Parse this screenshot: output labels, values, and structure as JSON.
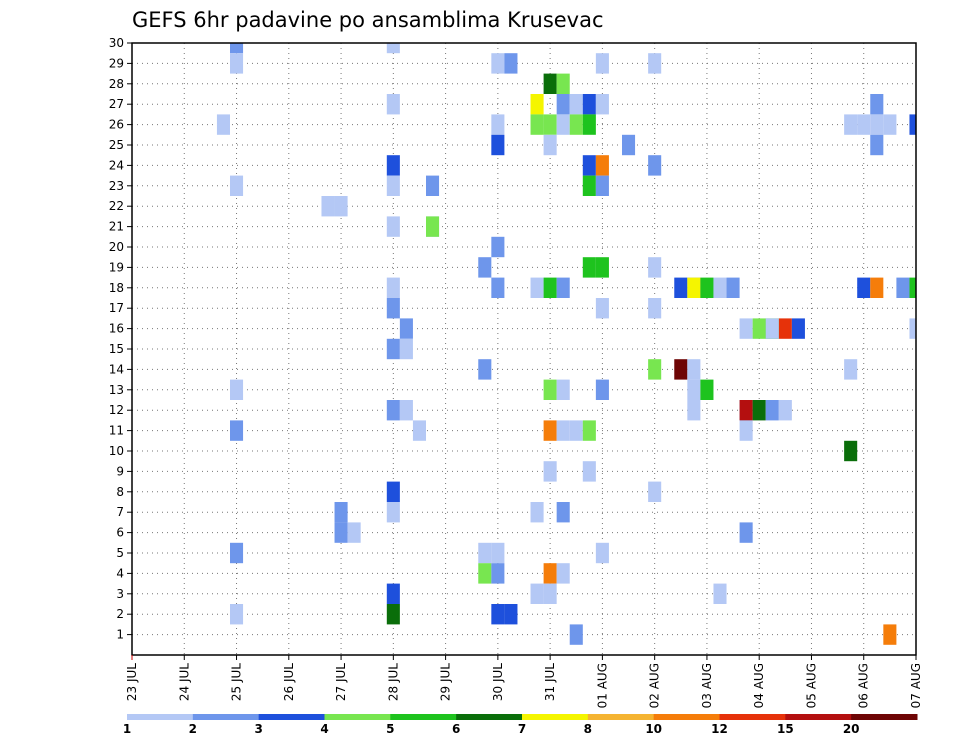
{
  "chart_data": {
    "type": "heatmap",
    "title": "GEFS 6hr padavine po ansamblima Krusevac",
    "x_labels": [
      "23 JUL",
      "24 JUL",
      "25 JUL",
      "26 JUL",
      "27 JUL",
      "28 JUL",
      "29 JUL",
      "30 JUL",
      "31 JUL",
      "01 AUG",
      "02 AUG",
      "03 AUG",
      "04 AUG",
      "05 AUG",
      "06 AUG",
      "07 AUG"
    ],
    "y_labels": [
      "1",
      "2",
      "3",
      "4",
      "5",
      "6",
      "7",
      "8",
      "9",
      "10",
      "11",
      "12",
      "13",
      "14",
      "15",
      "16",
      "17",
      "18",
      "19",
      "20",
      "21",
      "22",
      "23",
      "24",
      "25",
      "26",
      "27",
      "28",
      "29",
      "30"
    ],
    "ylim": [
      0,
      30
    ],
    "colorbar": {
      "levels": [
        "1",
        "2",
        "3",
        "4",
        "5",
        "6",
        "7",
        "8",
        "10",
        "12",
        "15",
        "20"
      ],
      "colors": [
        "#b4c8f5",
        "#6e96eb",
        "#1e50dc",
        "#78e650",
        "#1ec31e",
        "#0a6e0a",
        "#f5f500",
        "#f5b432",
        "#f57d0a",
        "#e6320a",
        "#b40f0f",
        "#6e0505"
      ]
    },
    "cells": [
      {
        "m": 30,
        "d": "25 JUL",
        "h": 0,
        "c": 2
      },
      {
        "m": 30,
        "d": "28 JUL",
        "h": 0,
        "c": 1
      },
      {
        "m": 29,
        "d": "25 JUL",
        "h": 0,
        "c": 1
      },
      {
        "m": 29,
        "d": "30 JUL",
        "h": 0,
        "c": 1
      },
      {
        "m": 29,
        "d": "30 JUL",
        "h": 6,
        "c": 2
      },
      {
        "m": 29,
        "d": "01 AUG",
        "h": 0,
        "c": 1
      },
      {
        "m": 29,
        "d": "02 AUG",
        "h": 0,
        "c": 1
      },
      {
        "m": 28,
        "d": "31 JUL",
        "h": 0,
        "c": 6
      },
      {
        "m": 28,
        "d": "31 JUL",
        "h": 6,
        "c": 4
      },
      {
        "m": 27,
        "d": "28 JUL",
        "h": 0,
        "c": 1
      },
      {
        "m": 27,
        "d": "31 JUL",
        "h": -6,
        "c": 7
      },
      {
        "m": 27,
        "d": "31 JUL",
        "h": 6,
        "c": 2
      },
      {
        "m": 27,
        "d": "31 JUL",
        "h": 12,
        "c": 1
      },
      {
        "m": 27,
        "d": "31 JUL",
        "h": 18,
        "c": 3
      },
      {
        "m": 27,
        "d": "01 AUG",
        "h": 0,
        "c": 1
      },
      {
        "m": 27,
        "d": "06 AUG",
        "h": 6,
        "c": 2
      },
      {
        "m": 26,
        "d": "24 JUL",
        "h": 18,
        "c": 1
      },
      {
        "m": 26,
        "d": "30 JUL",
        "h": 0,
        "c": 1
      },
      {
        "m": 26,
        "d": "31 JUL",
        "h": -6,
        "c": 4
      },
      {
        "m": 26,
        "d": "31 JUL",
        "h": 0,
        "c": 4
      },
      {
        "m": 26,
        "d": "31 JUL",
        "h": 6,
        "c": 1
      },
      {
        "m": 26,
        "d": "31 JUL",
        "h": 12,
        "c": 4
      },
      {
        "m": 26,
        "d": "31 JUL",
        "h": 18,
        "c": 5
      },
      {
        "m": 26,
        "d": "06 AUG",
        "h": -6,
        "c": 1
      },
      {
        "m": 26,
        "d": "06 AUG",
        "h": 0,
        "c": 1
      },
      {
        "m": 26,
        "d": "06 AUG",
        "h": 6,
        "c": 1
      },
      {
        "m": 26,
        "d": "06 AUG",
        "h": 12,
        "c": 1
      },
      {
        "m": 26,
        "d": "07 AUG",
        "h": 0,
        "c": 3
      },
      {
        "m": 25,
        "d": "30 JUL",
        "h": 0,
        "c": 3
      },
      {
        "m": 25,
        "d": "31 JUL",
        "h": 0,
        "c": 1
      },
      {
        "m": 25,
        "d": "02 AUG",
        "h": -12,
        "c": 2
      },
      {
        "m": 25,
        "d": "06 AUG",
        "h": 6,
        "c": 2
      },
      {
        "m": 24,
        "d": "28 JUL",
        "h": 0,
        "c": 3
      },
      {
        "m": 24,
        "d": "31 JUL",
        "h": 18,
        "c": 3
      },
      {
        "m": 24,
        "d": "01 AUG",
        "h": 0,
        "c": 9
      },
      {
        "m": 24,
        "d": "02 AUG",
        "h": 0,
        "c": 2
      },
      {
        "m": 23,
        "d": "25 JUL",
        "h": 0,
        "c": 1
      },
      {
        "m": 23,
        "d": "28 JUL",
        "h": 0,
        "c": 1
      },
      {
        "m": 23,
        "d": "28 JUL",
        "h": 18,
        "c": 2
      },
      {
        "m": 23,
        "d": "31 JUL",
        "h": 18,
        "c": 5
      },
      {
        "m": 23,
        "d": "01 AUG",
        "h": 0,
        "c": 2
      },
      {
        "m": 22,
        "d": "27 JUL",
        "h": -6,
        "c": 1
      },
      {
        "m": 22,
        "d": "27 JUL",
        "h": 0,
        "c": 1
      },
      {
        "m": 21,
        "d": "28 JUL",
        "h": 0,
        "c": 1
      },
      {
        "m": 21,
        "d": "28 JUL",
        "h": 18,
        "c": 1
      },
      {
        "m": 21,
        "d": "29 JUL",
        "h": -6,
        "c": 4
      },
      {
        "m": 20,
        "d": "30 JUL",
        "h": 0,
        "c": 2
      },
      {
        "m": 19,
        "d": "30 JUL",
        "h": -6,
        "c": 2
      },
      {
        "m": 19,
        "d": "31 JUL",
        "h": 18,
        "c": 5
      },
      {
        "m": 19,
        "d": "01 AUG",
        "h": 0,
        "c": 5
      },
      {
        "m": 19,
        "d": "02 AUG",
        "h": 0,
        "c": 1
      },
      {
        "m": 18,
        "d": "28 JUL",
        "h": 0,
        "c": 1
      },
      {
        "m": 18,
        "d": "30 JUL",
        "h": 0,
        "c": 2
      },
      {
        "m": 18,
        "d": "31 JUL",
        "h": -6,
        "c": 1
      },
      {
        "m": 18,
        "d": "31 JUL",
        "h": 0,
        "c": 5
      },
      {
        "m": 18,
        "d": "31 JUL",
        "h": 6,
        "c": 2
      },
      {
        "m": 18,
        "d": "02 AUG",
        "h": 12,
        "c": 3
      },
      {
        "m": 18,
        "d": "02 AUG",
        "h": 18,
        "c": 2
      },
      {
        "m": 18,
        "d": "03 AUG",
        "h": -6,
        "c": 7
      },
      {
        "m": 18,
        "d": "03 AUG",
        "h": 0,
        "c": 5
      },
      {
        "m": 18,
        "d": "03 AUG",
        "h": 6,
        "c": 1
      },
      {
        "m": 18,
        "d": "03 AUG",
        "h": 12,
        "c": 2
      },
      {
        "m": 18,
        "d": "06 AUG",
        "h": 0,
        "c": 3
      },
      {
        "m": 18,
        "d": "06 AUG",
        "h": 6,
        "c": 9
      },
      {
        "m": 18,
        "d": "07 AUG",
        "h": -6,
        "c": 2
      },
      {
        "m": 18,
        "d": "07 AUG",
        "h": 0,
        "c": 5
      },
      {
        "m": 17,
        "d": "28 JUL",
        "h": 0,
        "c": 2
      },
      {
        "m": 17,
        "d": "01 AUG",
        "h": 0,
        "c": 1
      },
      {
        "m": 17,
        "d": "02 AUG",
        "h": 0,
        "c": 1
      },
      {
        "m": 16,
        "d": "28 JUL",
        "h": 6,
        "c": 2
      },
      {
        "m": 16,
        "d": "04 AUG",
        "h": -6,
        "c": 1
      },
      {
        "m": 16,
        "d": "04 AUG",
        "h": 0,
        "c": 4
      },
      {
        "m": 16,
        "d": "04 AUG",
        "h": 6,
        "c": 5
      },
      {
        "m": 16,
        "d": "04 AUG",
        "h": 12,
        "c": 10
      },
      {
        "m": 16,
        "d": "04 AUG",
        "h": 18,
        "c": 3
      },
      {
        "m": 16,
        "d": "05 AUG",
        "h": -18,
        "c": 1
      },
      {
        "m": 16,
        "d": "07 AUG",
        "h": 0,
        "c": 1
      },
      {
        "m": 15,
        "d": "28 JUL",
        "h": 0,
        "c": 2
      },
      {
        "m": 15,
        "d": "28 JUL",
        "h": 6,
        "c": 1
      },
      {
        "m": 14,
        "d": "30 JUL",
        "h": -6,
        "c": 2
      },
      {
        "m": 14,
        "d": "02 AUG",
        "h": 0,
        "c": 4
      },
      {
        "m": 14,
        "d": "03 AUG",
        "h": -12,
        "c": 12
      },
      {
        "m": 14,
        "d": "03 AUG",
        "h": -6,
        "c": 1
      },
      {
        "m": 14,
        "d": "06 AUG",
        "h": -6,
        "c": 1
      },
      {
        "m": 13,
        "d": "25 JUL",
        "h": 0,
        "c": 1
      },
      {
        "m": 13,
        "d": "31 JUL",
        "h": 0,
        "c": 4
      },
      {
        "m": 13,
        "d": "31 JUL",
        "h": 6,
        "c": 1
      },
      {
        "m": 13,
        "d": "01 AUG",
        "h": 0,
        "c": 2
      },
      {
        "m": 13,
        "d": "03 AUG",
        "h": -6,
        "c": 1
      },
      {
        "m": 13,
        "d": "03 AUG",
        "h": 0,
        "c": 5
      },
      {
        "m": 12,
        "d": "28 JUL",
        "h": 0,
        "c": 2
      },
      {
        "m": 12,
        "d": "28 JUL",
        "h": 6,
        "c": 1
      },
      {
        "m": 12,
        "d": "03 AUG",
        "h": -6,
        "c": 1
      },
      {
        "m": 12,
        "d": "03 AUG",
        "h": 18,
        "c": 2
      },
      {
        "m": 12,
        "d": "04 AUG",
        "h": -6,
        "c": 11
      },
      {
        "m": 12,
        "d": "04 AUG",
        "h": 0,
        "c": 6
      },
      {
        "m": 12,
        "d": "04 AUG",
        "h": 6,
        "c": 2
      },
      {
        "m": 12,
        "d": "04 AUG",
        "h": 12,
        "c": 1
      },
      {
        "m": 11,
        "d": "25 JUL",
        "h": 0,
        "c": 2
      },
      {
        "m": 11,
        "d": "28 JUL",
        "h": 12,
        "c": 1
      },
      {
        "m": 11,
        "d": "31 JUL",
        "h": 0,
        "c": 9
      },
      {
        "m": 11,
        "d": "31 JUL",
        "h": 6,
        "c": 1
      },
      {
        "m": 11,
        "d": "31 JUL",
        "h": 12,
        "c": 1
      },
      {
        "m": 11,
        "d": "31 JUL",
        "h": 18,
        "c": 4
      },
      {
        "m": 11,
        "d": "04 AUG",
        "h": -6,
        "c": 1
      },
      {
        "m": 10,
        "d": "06 AUG",
        "h": -6,
        "c": 6
      },
      {
        "m": 9,
        "d": "31 JUL",
        "h": 0,
        "c": 1
      },
      {
        "m": 9,
        "d": "31 JUL",
        "h": 18,
        "c": 1
      },
      {
        "m": 8,
        "d": "28 JUL",
        "h": 0,
        "c": 3
      },
      {
        "m": 8,
        "d": "02 AUG",
        "h": 0,
        "c": 1
      },
      {
        "m": 7,
        "d": "27 JUL",
        "h": 0,
        "c": 2
      },
      {
        "m": 7,
        "d": "28 JUL",
        "h": 0,
        "c": 1
      },
      {
        "m": 7,
        "d": "31 JUL",
        "h": -6,
        "c": 1
      },
      {
        "m": 7,
        "d": "31 JUL",
        "h": 6,
        "c": 2
      },
      {
        "m": 6,
        "d": "27 JUL",
        "h": 0,
        "c": 2
      },
      {
        "m": 6,
        "d": "27 JUL",
        "h": 6,
        "c": 1
      },
      {
        "m": 6,
        "d": "03 AUG",
        "h": 18,
        "c": 2
      },
      {
        "m": 5,
        "d": "25 JUL",
        "h": 0,
        "c": 2
      },
      {
        "m": 5,
        "d": "30 JUL",
        "h": -6,
        "c": 1
      },
      {
        "m": 5,
        "d": "30 JUL",
        "h": 0,
        "c": 1
      },
      {
        "m": 5,
        "d": "01 AUG",
        "h": 0,
        "c": 1
      },
      {
        "m": 4,
        "d": "30 JUL",
        "h": -6,
        "c": 4
      },
      {
        "m": 4,
        "d": "30 JUL",
        "h": 0,
        "c": 2
      },
      {
        "m": 4,
        "d": "31 JUL",
        "h": 0,
        "c": 9
      },
      {
        "m": 4,
        "d": "31 JUL",
        "h": 6,
        "c": 1
      },
      {
        "m": 3,
        "d": "28 JUL",
        "h": 0,
        "c": 3
      },
      {
        "m": 3,
        "d": "31 JUL",
        "h": -6,
        "c": 1
      },
      {
        "m": 3,
        "d": "31 JUL",
        "h": 0,
        "c": 1
      },
      {
        "m": 3,
        "d": "03 AUG",
        "h": 6,
        "c": 1
      },
      {
        "m": 2,
        "d": "25 JUL",
        "h": 0,
        "c": 1
      },
      {
        "m": 2,
        "d": "28 JUL",
        "h": 0,
        "c": 6
      },
      {
        "m": 2,
        "d": "30 JUL",
        "h": 0,
        "c": 3
      },
      {
        "m": 2,
        "d": "30 JUL",
        "h": 6,
        "c": 3
      },
      {
        "m": 1,
        "d": "01 AUG",
        "h": -12,
        "c": 2
      },
      {
        "m": 1,
        "d": "07 AUG",
        "h": -12,
        "c": 9
      }
    ]
  }
}
